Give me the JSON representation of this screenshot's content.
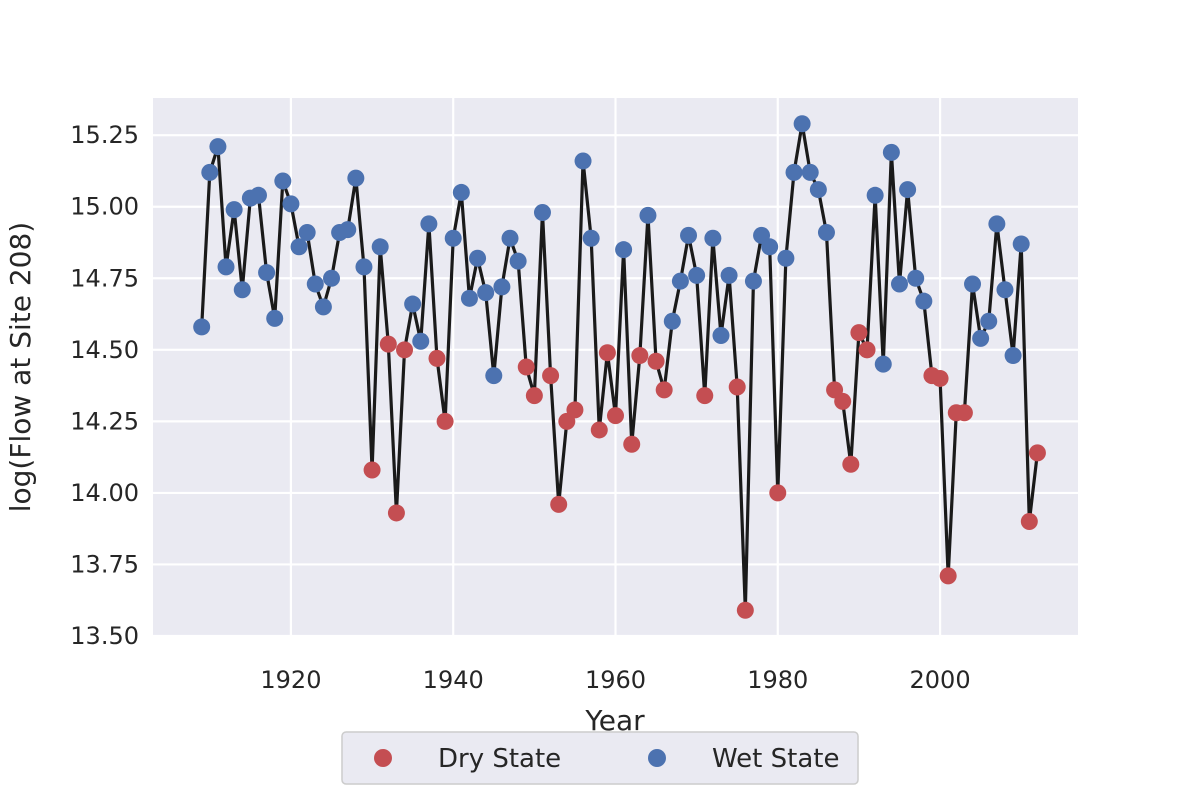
{
  "chart_data": {
    "type": "scatter",
    "title": "",
    "xlabel": "Year",
    "ylabel": "log(Flow at Site 208)",
    "xlim": [
      1903,
      2017
    ],
    "ylim": [
      13.5,
      15.38
    ],
    "xticks": [
      1920,
      1940,
      1960,
      1980,
      2000
    ],
    "yticks": [
      13.5,
      13.75,
      14.0,
      14.25,
      14.5,
      14.75,
      15.0,
      15.25
    ],
    "ytick_labels": [
      "13.50",
      "13.75",
      "14.00",
      "14.25",
      "14.50",
      "14.75",
      "15.00",
      "15.25"
    ],
    "grid": true,
    "line_color": "#1a1a1a",
    "background": "#eaeaf2",
    "legend_position": "bottom-center",
    "series": [
      {
        "name": "Dry State",
        "color": "#c44e52"
      },
      {
        "name": "Wet State",
        "color": "#4c72b0"
      }
    ],
    "x": [
      1909,
      1910,
      1911,
      1912,
      1913,
      1914,
      1915,
      1916,
      1917,
      1918,
      1919,
      1920,
      1921,
      1922,
      1923,
      1924,
      1925,
      1926,
      1927,
      1928,
      1929,
      1930,
      1931,
      1932,
      1933,
      1934,
      1935,
      1936,
      1937,
      1938,
      1939,
      1940,
      1941,
      1942,
      1943,
      1944,
      1945,
      1946,
      1947,
      1948,
      1949,
      1950,
      1951,
      1952,
      1953,
      1954,
      1955,
      1956,
      1957,
      1958,
      1959,
      1960,
      1961,
      1962,
      1963,
      1964,
      1965,
      1966,
      1967,
      1968,
      1969,
      1970,
      1971,
      1972,
      1973,
      1974,
      1975,
      1976,
      1977,
      1978,
      1979,
      1980,
      1981,
      1982,
      1983,
      1984,
      1985,
      1986,
      1987,
      1988,
      1989,
      1990,
      1991,
      1992,
      1993,
      1994,
      1995,
      1996,
      1997,
      1998,
      1999,
      2000,
      2001,
      2002,
      2003,
      2004,
      2005,
      2006,
      2007,
      2008,
      2009,
      2010,
      2011,
      2012
    ],
    "values": [
      14.58,
      15.12,
      15.21,
      14.79,
      14.99,
      14.71,
      15.03,
      15.04,
      14.77,
      14.61,
      15.09,
      15.01,
      14.86,
      14.91,
      14.73,
      14.65,
      14.75,
      14.91,
      14.92,
      15.1,
      14.79,
      14.08,
      14.86,
      14.52,
      13.93,
      14.5,
      14.66,
      14.53,
      14.94,
      14.47,
      14.25,
      14.89,
      15.05,
      14.68,
      14.82,
      14.7,
      14.41,
      14.72,
      14.89,
      14.81,
      14.44,
      14.34,
      14.98,
      14.41,
      13.96,
      14.25,
      14.29,
      15.16,
      14.89,
      14.22,
      14.49,
      14.27,
      14.85,
      14.17,
      14.48,
      14.97,
      14.46,
      14.36,
      14.6,
      14.74,
      14.9,
      14.76,
      14.34,
      14.89,
      14.55,
      14.76,
      14.37,
      13.59,
      14.74,
      14.9,
      14.86,
      14.0,
      14.82,
      15.12,
      15.29,
      15.12,
      15.06,
      14.91,
      14.36,
      14.32,
      14.1,
      14.56,
      14.5,
      15.04,
      14.45,
      15.19,
      14.73,
      15.06,
      14.75,
      14.67,
      14.41,
      14.4,
      13.71,
      14.28,
      14.28,
      14.73,
      14.54,
      14.6,
      14.94,
      14.71,
      14.48,
      14.87,
      13.9,
      14.14
    ],
    "state": [
      "Wet",
      "Wet",
      "Wet",
      "Wet",
      "Wet",
      "Wet",
      "Wet",
      "Wet",
      "Wet",
      "Wet",
      "Wet",
      "Wet",
      "Wet",
      "Wet",
      "Wet",
      "Wet",
      "Wet",
      "Wet",
      "Wet",
      "Wet",
      "Wet",
      "Dry",
      "Wet",
      "Dry",
      "Dry",
      "Dry",
      "Wet",
      "Wet",
      "Wet",
      "Dry",
      "Dry",
      "Wet",
      "Wet",
      "Wet",
      "Wet",
      "Wet",
      "Wet",
      "Wet",
      "Wet",
      "Wet",
      "Dry",
      "Dry",
      "Wet",
      "Dry",
      "Dry",
      "Dry",
      "Dry",
      "Wet",
      "Wet",
      "Dry",
      "Dry",
      "Dry",
      "Wet",
      "Dry",
      "Dry",
      "Wet",
      "Dry",
      "Dry",
      "Wet",
      "Wet",
      "Wet",
      "Wet",
      "Dry",
      "Wet",
      "Wet",
      "Wet",
      "Dry",
      "Dry",
      "Wet",
      "Wet",
      "Wet",
      "Dry",
      "Wet",
      "Wet",
      "Wet",
      "Wet",
      "Wet",
      "Wet",
      "Dry",
      "Dry",
      "Dry",
      "Dry",
      "Dry",
      "Wet",
      "Wet",
      "Wet",
      "Wet",
      "Wet",
      "Wet",
      "Wet",
      "Dry",
      "Dry",
      "Dry",
      "Dry",
      "Dry",
      "Wet",
      "Wet",
      "Wet",
      "Wet",
      "Wet",
      "Wet",
      "Wet",
      "Dry",
      "Dry"
    ]
  }
}
